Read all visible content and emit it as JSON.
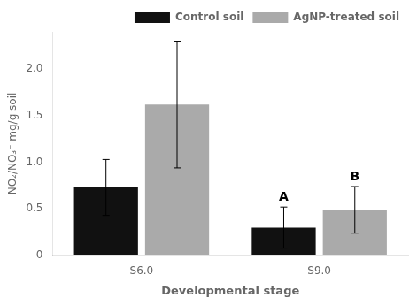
{
  "chart_data": {
    "type": "bar",
    "categories": [
      "S6.0",
      "S9.0"
    ],
    "series": [
      {
        "name": "Control soil",
        "color": "#111111",
        "values": [
          0.73,
          0.3
        ],
        "errors": [
          0.3,
          0.22
        ]
      },
      {
        "name": "AgNP-treated soil",
        "color": "#aaaaaa",
        "values": [
          1.62,
          0.49
        ],
        "errors": [
          0.68,
          0.25
        ]
      }
    ],
    "xlabel": "Developmental stage",
    "ylabel": "NO₂/NO₃⁻ mg/g soil",
    "ylim": [
      0,
      2.4
    ],
    "yticks": [
      0,
      0.5,
      {
        "value": 1.0,
        "label": "1.0"
      },
      1.5,
      {
        "value": 2.0,
        "label": "2.0"
      }
    ],
    "grid": false,
    "legend": "upper right",
    "annotations": [
      {
        "category": "S9.0",
        "series": "Control soil",
        "text": "A"
      },
      {
        "category": "S9.0",
        "series": "AgNP-treated soil",
        "text": "B"
      }
    ]
  }
}
